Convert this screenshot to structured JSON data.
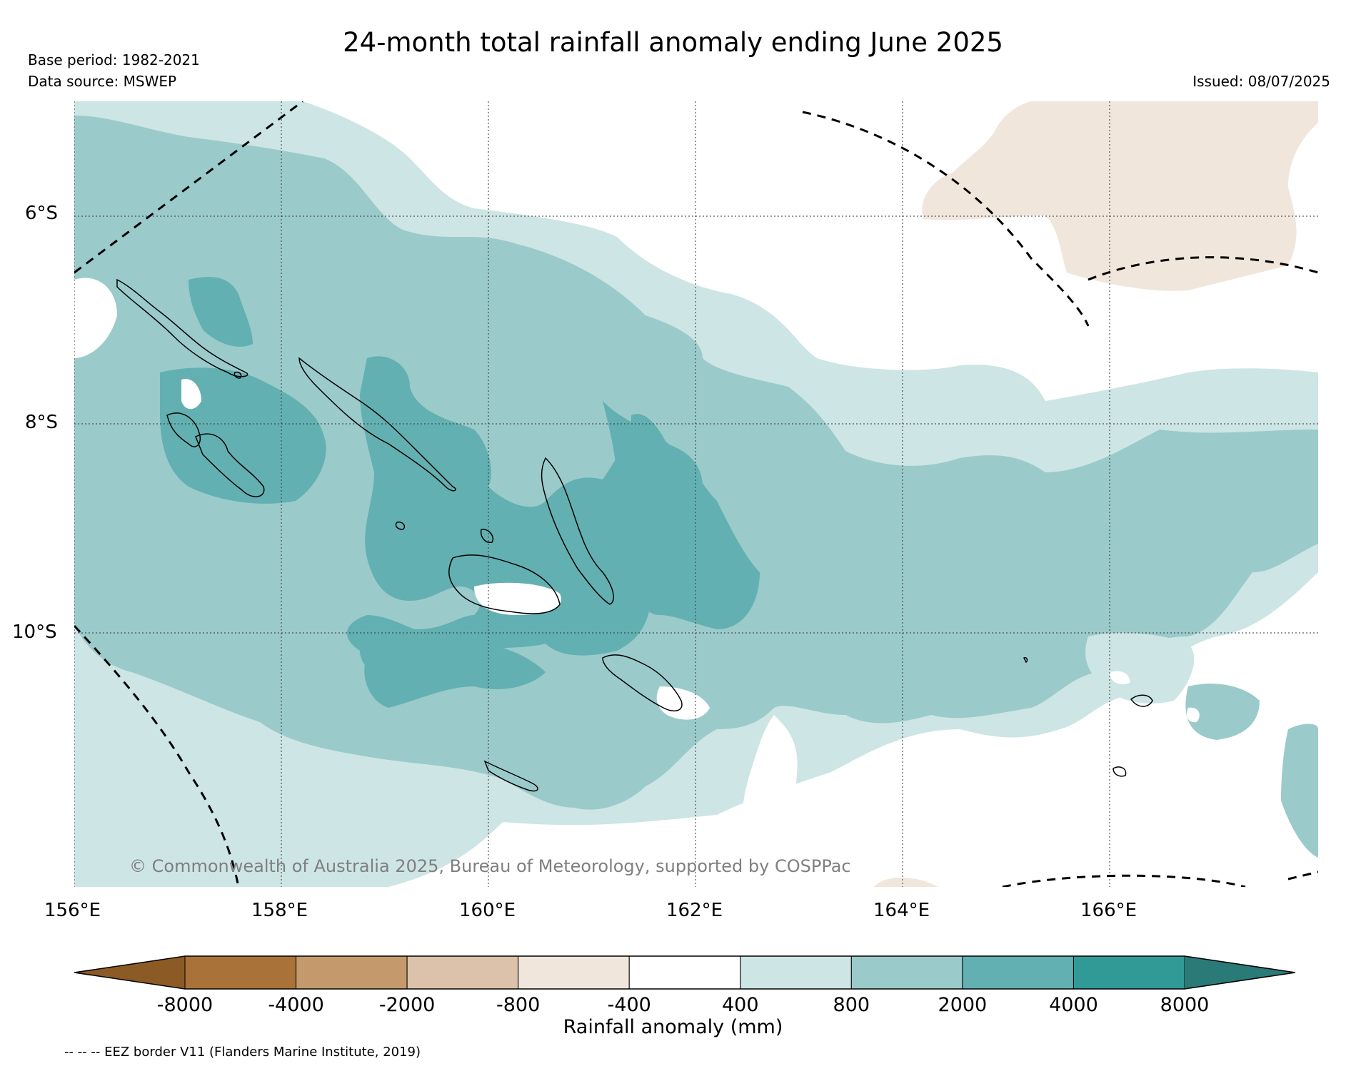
{
  "header": {
    "title": "24-month total rainfall anomaly ending June 2025",
    "base_period": "Base period: 1982-2021",
    "data_source": "Data source: MSWEP",
    "issued": "Issued: 08/07/2025"
  },
  "map": {
    "lat_labels": [
      "6°S",
      "8°S",
      "10°S"
    ],
    "lon_labels": [
      "156°E",
      "158°E",
      "160°E",
      "162°E",
      "164°E",
      "166°E"
    ],
    "copyright": "© Commonwealth of Australia 2025, Bureau of Meteorology, supported by COSPPac",
    "colors": {
      "c_neg800_neg400": "#f0e6dc",
      "c_neutral": "#ffffff",
      "c_400_800": "#cde5e4",
      "c_800_2000": "#9bcacb",
      "c_2000_4000": "#63b0b2",
      "coast": "#000000",
      "eez": "#000000",
      "grid": "#333333"
    }
  },
  "colorbar": {
    "ticks": [
      "-8000",
      "-4000",
      "-2000",
      "-800",
      "-400",
      "400",
      "800",
      "2000",
      "4000",
      "8000"
    ],
    "label": "Rainfall anomaly (mm)",
    "colors": [
      "#8c5a24",
      "#a97239",
      "#c49a6c",
      "#dcc2aa",
      "#f0e6dc",
      "#ffffff",
      "#cde5e4",
      "#9bcacb",
      "#63b0b2",
      "#319a97",
      "#2a7a78"
    ]
  },
  "footer": {
    "eez_note": "-- -- -- EEZ border V11 (Flanders Marine Institute, 2019)"
  }
}
